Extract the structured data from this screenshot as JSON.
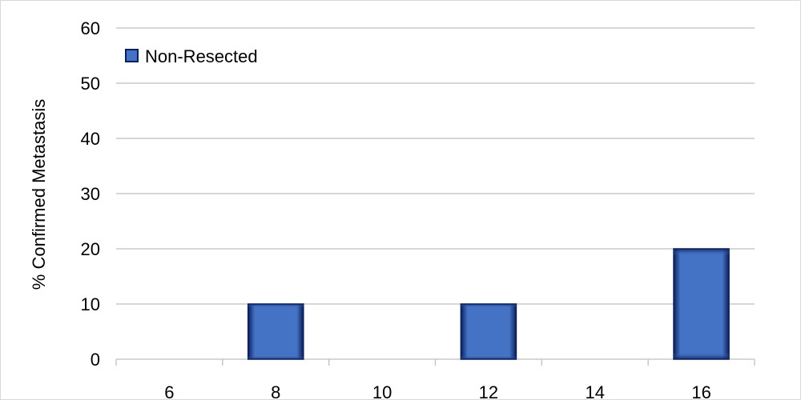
{
  "chart_data": {
    "type": "bar",
    "categories": [
      "6",
      "8",
      "10",
      "12",
      "14",
      "16"
    ],
    "series": [
      {
        "name": "Non-Resected",
        "values": [
          0,
          10,
          0,
          10,
          0,
          20
        ]
      }
    ],
    "title": "",
    "xlabel": "",
    "ylabel": "% Confirmed Metastasis",
    "ylim": [
      0,
      60
    ],
    "yticks": [
      "0",
      "10",
      "20",
      "30",
      "40",
      "50",
      "60"
    ],
    "grid": true,
    "legend_position": "top-left",
    "colors": {
      "bar_fill": "#4472c4",
      "bar_edge": "#0a1e5a",
      "gridline": "#bfbfbf"
    }
  }
}
